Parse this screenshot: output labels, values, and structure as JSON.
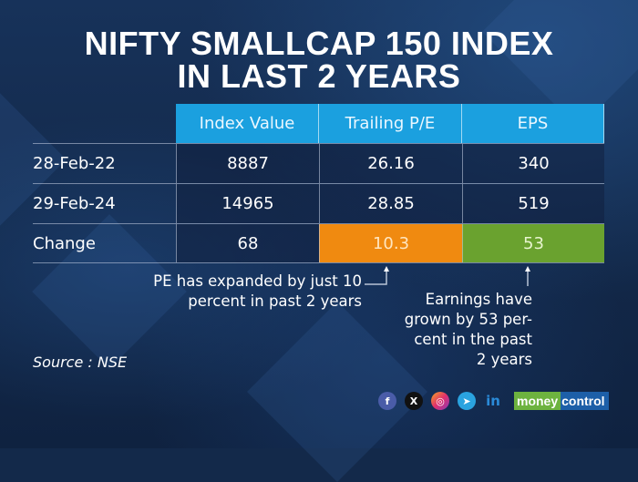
{
  "title": {
    "line1": "NIFTY SMALLCAP 150 INDEX",
    "line2": "IN LAST 2 YEARS"
  },
  "table": {
    "headers": [
      "Index Value",
      "Trailing P/E",
      "EPS"
    ],
    "rows": [
      {
        "label": "28-Feb-22",
        "values": [
          "8887",
          "26.16",
          "340"
        ]
      },
      {
        "label": "29-Feb-24",
        "values": [
          "14965",
          "28.85",
          "519"
        ]
      },
      {
        "label": "Change",
        "values": [
          "68",
          "10.3",
          "53"
        ]
      }
    ]
  },
  "notes": {
    "pe_line1": "PE has expanded by just 10",
    "pe_line2": "percent in past 2 years",
    "eps_line1": "Earnings have",
    "eps_line2": "grown by 53 per-",
    "eps_line3": "cent in the past",
    "eps_line4": "2 years"
  },
  "source": "Source : NSE",
  "social": {
    "icons": [
      "facebook-icon",
      "x-icon",
      "instagram-icon",
      "telegram-icon",
      "linkedin-icon"
    ],
    "facebook": "f",
    "x": "X",
    "instagram": "◎",
    "telegram": "➤",
    "linkedin": "in"
  },
  "brand": {
    "part1": "money",
    "part2": "control"
  },
  "colors": {
    "header_bg": "#1ba0df",
    "pe_change_bg": "#f08a10",
    "eps_change_bg": "#6aa22f",
    "pe_change_text": "#ffe6c0",
    "eps_change_text": "#e8f5d0"
  }
}
